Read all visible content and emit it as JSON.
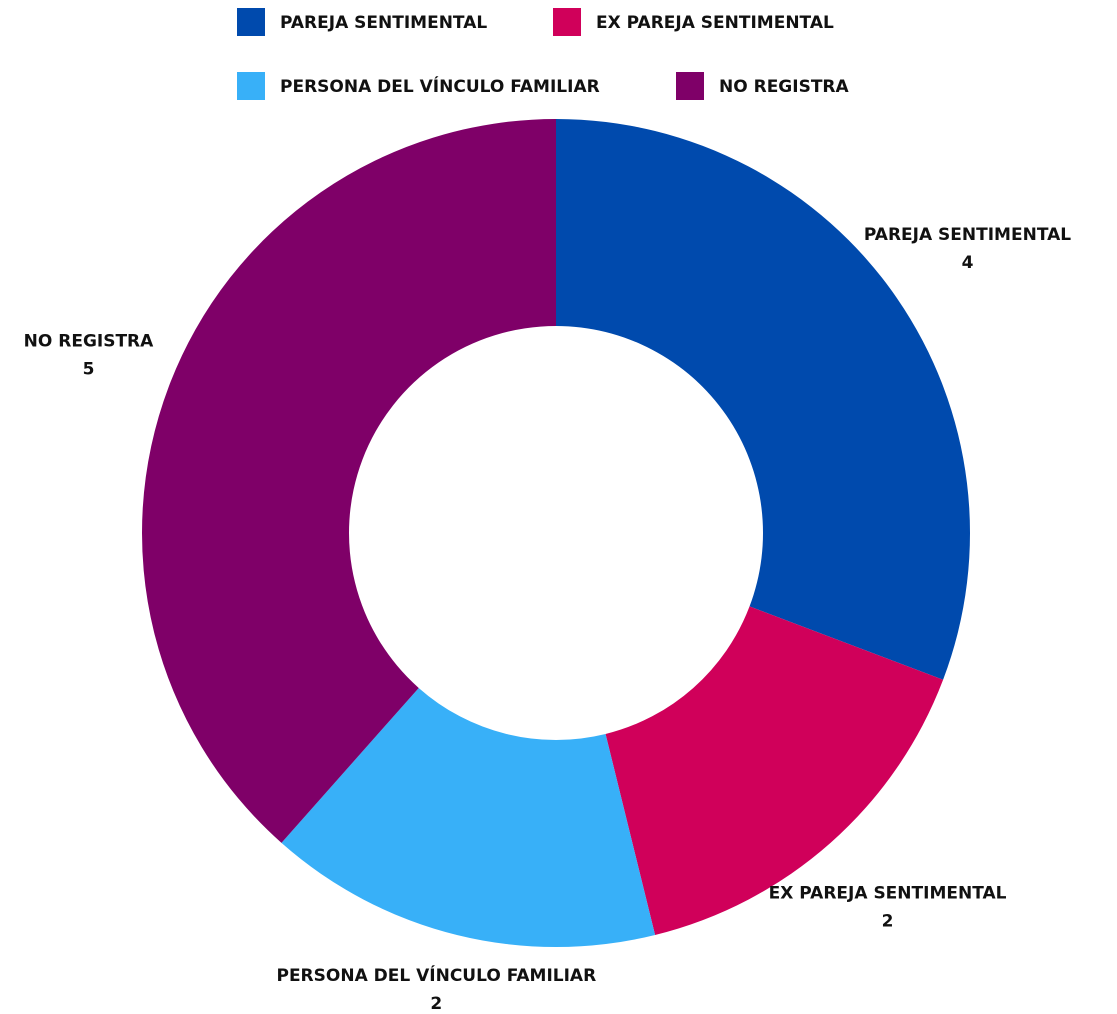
{
  "chart_data": {
    "type": "donut",
    "categories": [
      "PAREJA SENTIMENTAL",
      "EX PAREJA SENTIMENTAL",
      "PERSONA DEL VÍNCULO FAMILIAR",
      "NO REGISTRA"
    ],
    "values": [
      4,
      2,
      2,
      5
    ],
    "colors": [
      "#004aad",
      "#d0005a",
      "#38b0f8",
      "#7f0068"
    ]
  }
}
